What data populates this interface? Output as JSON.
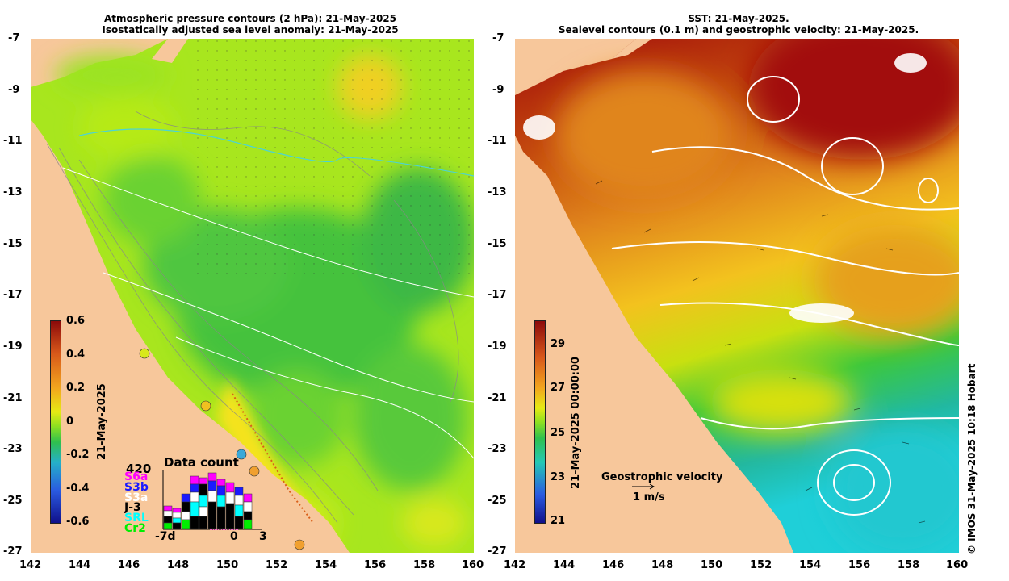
{
  "left_panel": {
    "title_line1": "Atmospheric pressure contours (2 hPa): 21-May-2025",
    "title_line2": "Isostatically adjusted sea level anomaly: 21-May-2025",
    "colorbar": {
      "labels": [
        "0.6",
        "0.4",
        "0.2",
        "0",
        "-0.2",
        "-0.4",
        "-0.6"
      ],
      "date_label": "21-May-2025"
    },
    "data_count": {
      "title": "Data count",
      "max_label": "420",
      "satellites": [
        {
          "name": "S6a",
          "color": "#ff00ff"
        },
        {
          "name": "S3b",
          "color": "#1a1aff"
        },
        {
          "name": "S3a",
          "color": "#ffffff"
        },
        {
          "name": "J-3",
          "color": "#000000"
        },
        {
          "name": "SRL",
          "color": "#00ffff"
        },
        {
          "name": "Cr2",
          "color": "#00ee00"
        }
      ],
      "x_labels": [
        "-7d",
        "0",
        "3"
      ]
    }
  },
  "right_panel": {
    "title_line1": "SST: 21-May-2025.",
    "title_line2": "Sealevel contours (0.1 m) and geostrophic velocity: 21-May-2025.",
    "colorbar": {
      "labels": [
        "29",
        "27",
        "25",
        "23",
        "21"
      ],
      "date_label": "21-May-2025 00:00:00"
    },
    "velocity_legend": {
      "title": "Geostrophic velocity",
      "scale": "1 m/s"
    },
    "credit": "© IMOS 31-May-2025 10:18 Hobart"
  },
  "axes": {
    "lat_labels": [
      "-7",
      "-9",
      "-11",
      "-13",
      "-15",
      "-17",
      "-19",
      "-21",
      "-23",
      "-25",
      "-27"
    ],
    "lon_labels": [
      "142",
      "144",
      "146",
      "148",
      "150",
      "152",
      "154",
      "156",
      "158",
      "160"
    ]
  },
  "colors": {
    "land": "#f7c79b",
    "green": "#3cc83c",
    "lime": "#9fe61e",
    "orange": "#d9701a",
    "darkred": "#a50f0a",
    "cyan": "#22cccc"
  }
}
